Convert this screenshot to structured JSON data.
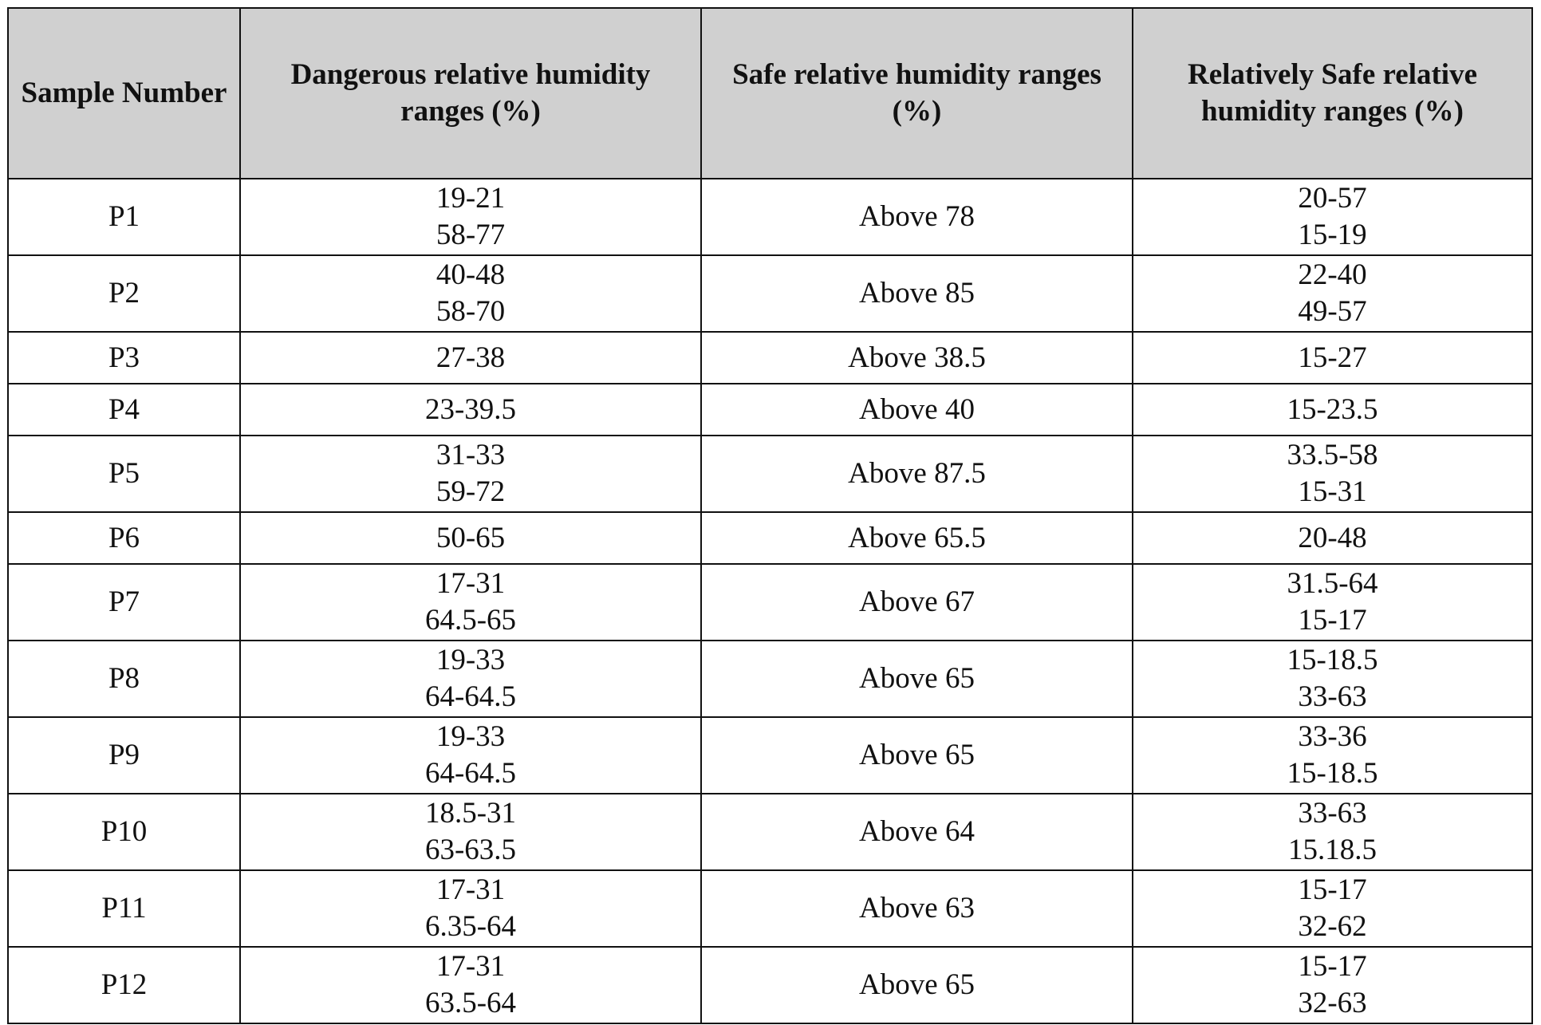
{
  "table": {
    "header": [
      "Sample Number",
      "Dangerous relative humidity ranges (%)",
      "Safe relative humidity ranges (%)",
      "Relatively Safe relative humidity ranges (%)"
    ],
    "rows": [
      [
        "P1",
        [
          "19-21",
          "58-77"
        ],
        "Above 78",
        [
          "20-57",
          "15-19"
        ]
      ],
      [
        "P2",
        [
          "40-48",
          "58-70"
        ],
        "Above 85",
        [
          "22-40",
          "49-57"
        ]
      ],
      [
        "P3",
        [
          "27-38"
        ],
        "Above 38.5",
        [
          "15-27"
        ]
      ],
      [
        "P4",
        [
          "23-39.5"
        ],
        "Above 40",
        [
          "15-23.5"
        ]
      ],
      [
        "P5",
        [
          "31-33",
          "59-72"
        ],
        "Above 87.5",
        [
          "33.5-58",
          "15-31"
        ]
      ],
      [
        "P6",
        [
          "50-65"
        ],
        "Above 65.5",
        [
          "20-48"
        ]
      ],
      [
        "P7",
        [
          "17-31",
          "64.5-65"
        ],
        "Above 67",
        [
          "31.5-64",
          "15-17"
        ]
      ],
      [
        "P8",
        [
          "19-33",
          "64-64.5"
        ],
        "Above 65",
        [
          "15-18.5",
          "33-63"
        ]
      ],
      [
        "P9",
        [
          "19-33",
          "64-64.5"
        ],
        "Above 65",
        [
          "33-36",
          "15-18.5"
        ]
      ],
      [
        "P10",
        [
          "18.5-31",
          "63-63.5"
        ],
        "Above 64",
        [
          "33-63",
          "15.18.5"
        ]
      ],
      [
        "P11",
        [
          "17-31",
          "6.35-64"
        ],
        "Above 63",
        [
          "15-17",
          "32-62"
        ]
      ],
      [
        "P12",
        [
          "17-31",
          "63.5-64"
        ],
        "Above 65",
        [
          "15-17",
          "32-63"
        ]
      ]
    ]
  }
}
